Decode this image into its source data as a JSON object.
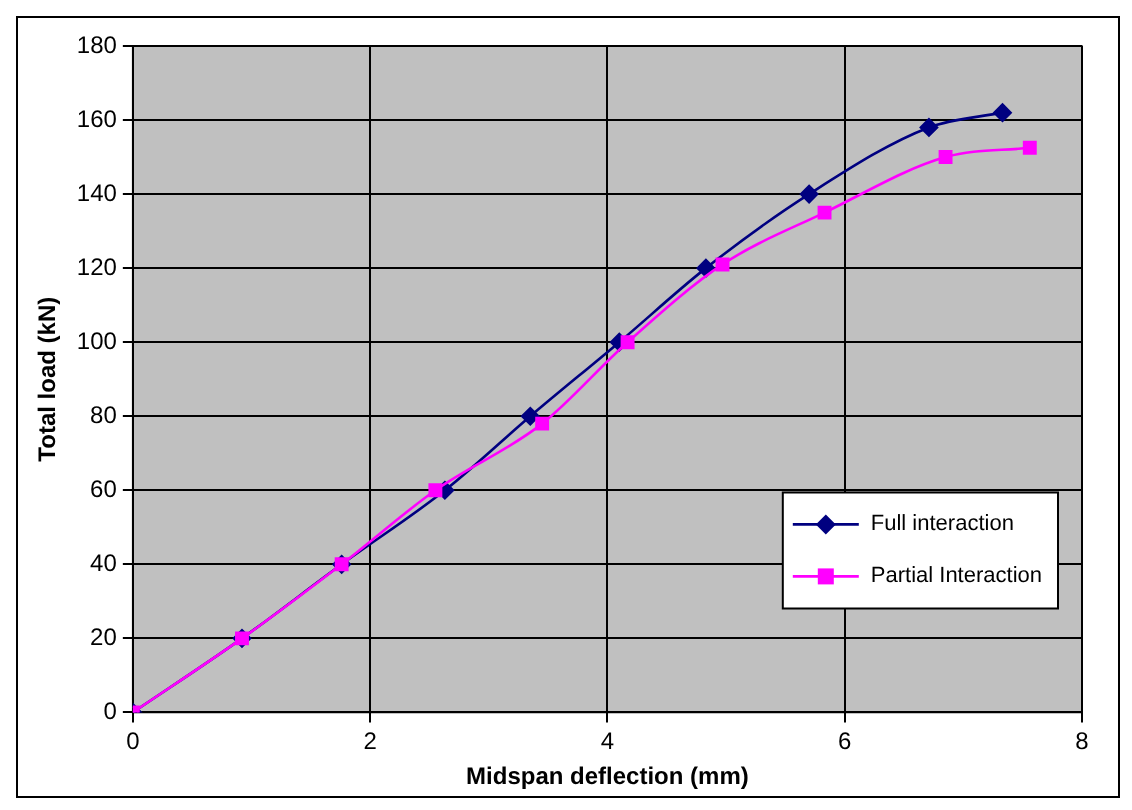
{
  "chart_data": {
    "type": "line",
    "xlabel": "Midspan deflection (mm)",
    "ylabel": "Total load (kN)",
    "xlim": [
      0,
      8
    ],
    "xticks": [
      0,
      2,
      4,
      6,
      8
    ],
    "ylim": [
      0,
      180
    ],
    "yticks": [
      0,
      20,
      40,
      60,
      80,
      100,
      120,
      140,
      160,
      180
    ],
    "grid": true,
    "legend": "bottom right",
    "line_style": "solid",
    "series": [
      {
        "name": "Full interaction",
        "color": "#000080",
        "marker": "diamond",
        "x": [
          0,
          0.92,
          1.76,
          2.63,
          3.35,
          4.1,
          4.83,
          5.7,
          6.71,
          7.33
        ],
        "values": [
          0,
          20,
          40,
          60,
          80,
          100,
          120,
          140,
          158,
          162
        ]
      },
      {
        "name": "Partial Interaction",
        "color": "#ff00ff",
        "marker": "square",
        "x": [
          0,
          0.92,
          1.76,
          2.55,
          3.45,
          4.17,
          4.97,
          5.83,
          6.85,
          7.56
        ],
        "values": [
          0,
          20,
          40,
          60,
          78,
          100,
          121,
          135,
          150,
          152.5
        ]
      }
    ]
  }
}
